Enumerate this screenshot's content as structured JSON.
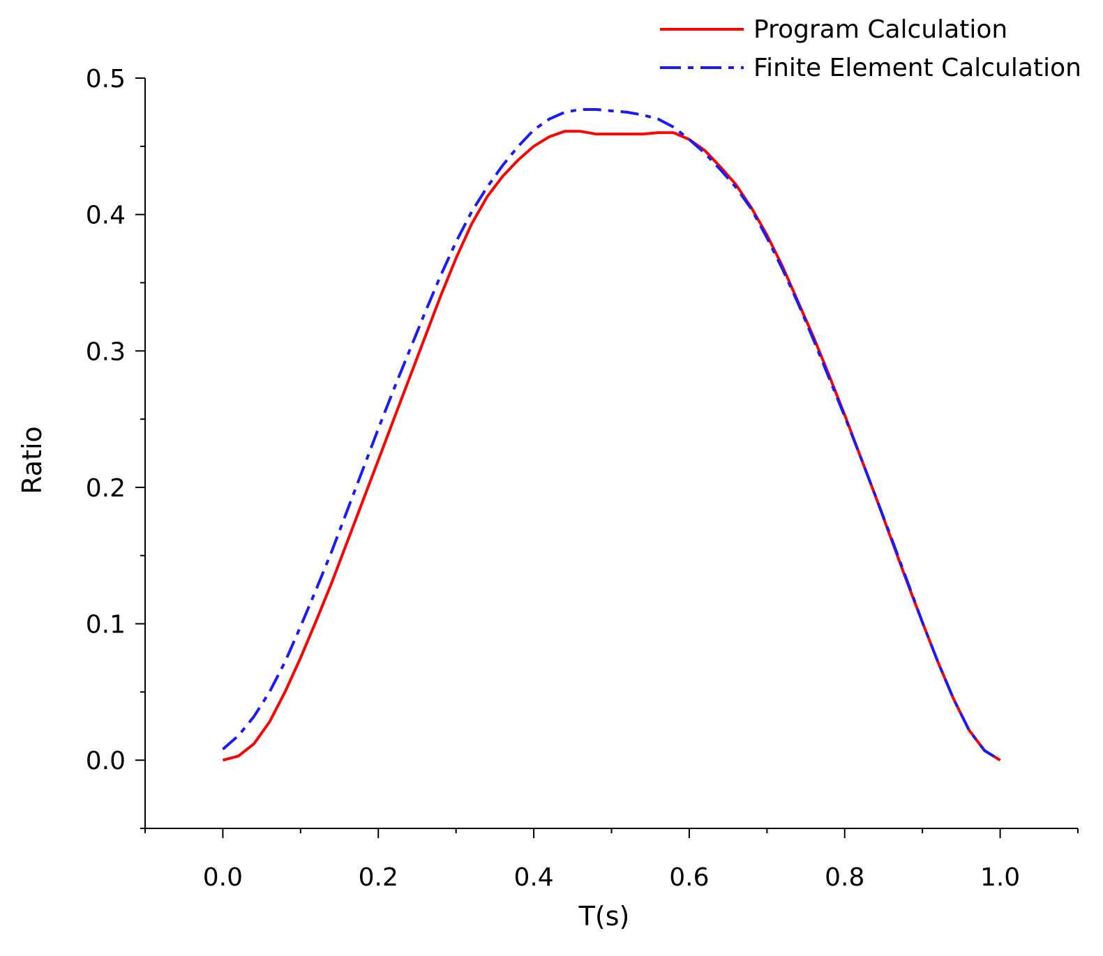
{
  "chart_data": {
    "type": "line",
    "xlabel": "T(s)",
    "ylabel": "Ratio",
    "xlim": [
      -0.1,
      1.1
    ],
    "ylim": [
      -0.05,
      0.5
    ],
    "x_ticks": [
      0.0,
      0.2,
      0.4,
      0.6,
      0.8,
      1.0
    ],
    "x_tick_labels": [
      "0.0",
      "0.2",
      "0.4",
      "0.6",
      "0.8",
      "1.0"
    ],
    "y_ticks": [
      0.0,
      0.1,
      0.2,
      0.3,
      0.4,
      0.5
    ],
    "y_tick_labels": [
      "0.0",
      "0.1",
      "0.2",
      "0.3",
      "0.4",
      "0.5"
    ],
    "x_minor_step": 0.1,
    "y_minor_step": 0.05,
    "grid": false,
    "legend_position": "top-right",
    "series": [
      {
        "name": "Program Calculation",
        "color": "#ff0000",
        "style": "solid",
        "x": [
          0.0,
          0.02,
          0.04,
          0.06,
          0.08,
          0.1,
          0.12,
          0.14,
          0.16,
          0.18,
          0.2,
          0.22,
          0.24,
          0.26,
          0.28,
          0.3,
          0.32,
          0.34,
          0.36,
          0.38,
          0.4,
          0.42,
          0.44,
          0.46,
          0.48,
          0.5,
          0.52,
          0.54,
          0.56,
          0.58,
          0.6,
          0.62,
          0.64,
          0.66,
          0.68,
          0.7,
          0.72,
          0.74,
          0.76,
          0.78,
          0.8,
          0.82,
          0.84,
          0.86,
          0.88,
          0.9,
          0.92,
          0.94,
          0.96,
          0.98,
          1.0
        ],
        "y": [
          0.0,
          0.003,
          0.012,
          0.028,
          0.05,
          0.075,
          0.102,
          0.13,
          0.16,
          0.19,
          0.22,
          0.25,
          0.28,
          0.31,
          0.34,
          0.368,
          0.393,
          0.413,
          0.428,
          0.44,
          0.45,
          0.457,
          0.461,
          0.461,
          0.459,
          0.459,
          0.459,
          0.459,
          0.46,
          0.46,
          0.455,
          0.447,
          0.435,
          0.422,
          0.405,
          0.385,
          0.362,
          0.336,
          0.31,
          0.282,
          0.253,
          0.223,
          0.193,
          0.162,
          0.131,
          0.101,
          0.072,
          0.045,
          0.022,
          0.007,
          0.0
        ]
      },
      {
        "name": "Finite Element Calculation",
        "color": "#1a1aff",
        "style": "dash-dot",
        "x": [
          0.0,
          0.02,
          0.04,
          0.06,
          0.08,
          0.1,
          0.12,
          0.14,
          0.16,
          0.18,
          0.2,
          0.22,
          0.24,
          0.26,
          0.28,
          0.3,
          0.32,
          0.34,
          0.36,
          0.38,
          0.4,
          0.42,
          0.44,
          0.46,
          0.48,
          0.5,
          0.52,
          0.54,
          0.56,
          0.58,
          0.6,
          0.62,
          0.64,
          0.66,
          0.68,
          0.7,
          0.72,
          0.74,
          0.76,
          0.78,
          0.8,
          0.82,
          0.84,
          0.86,
          0.88,
          0.9,
          0.92,
          0.94,
          0.96,
          0.98,
          1.0
        ],
        "y": [
          0.008,
          0.018,
          0.032,
          0.05,
          0.072,
          0.098,
          0.125,
          0.153,
          0.183,
          0.213,
          0.243,
          0.272,
          0.3,
          0.328,
          0.355,
          0.38,
          0.402,
          0.42,
          0.436,
          0.45,
          0.462,
          0.47,
          0.475,
          0.477,
          0.477,
          0.476,
          0.475,
          0.473,
          0.47,
          0.464,
          0.455,
          0.445,
          0.433,
          0.42,
          0.404,
          0.383,
          0.36,
          0.335,
          0.308,
          0.28,
          0.252,
          0.223,
          0.193,
          0.163,
          0.132,
          0.101,
          0.072,
          0.045,
          0.022,
          0.007,
          0.0
        ]
      }
    ]
  }
}
